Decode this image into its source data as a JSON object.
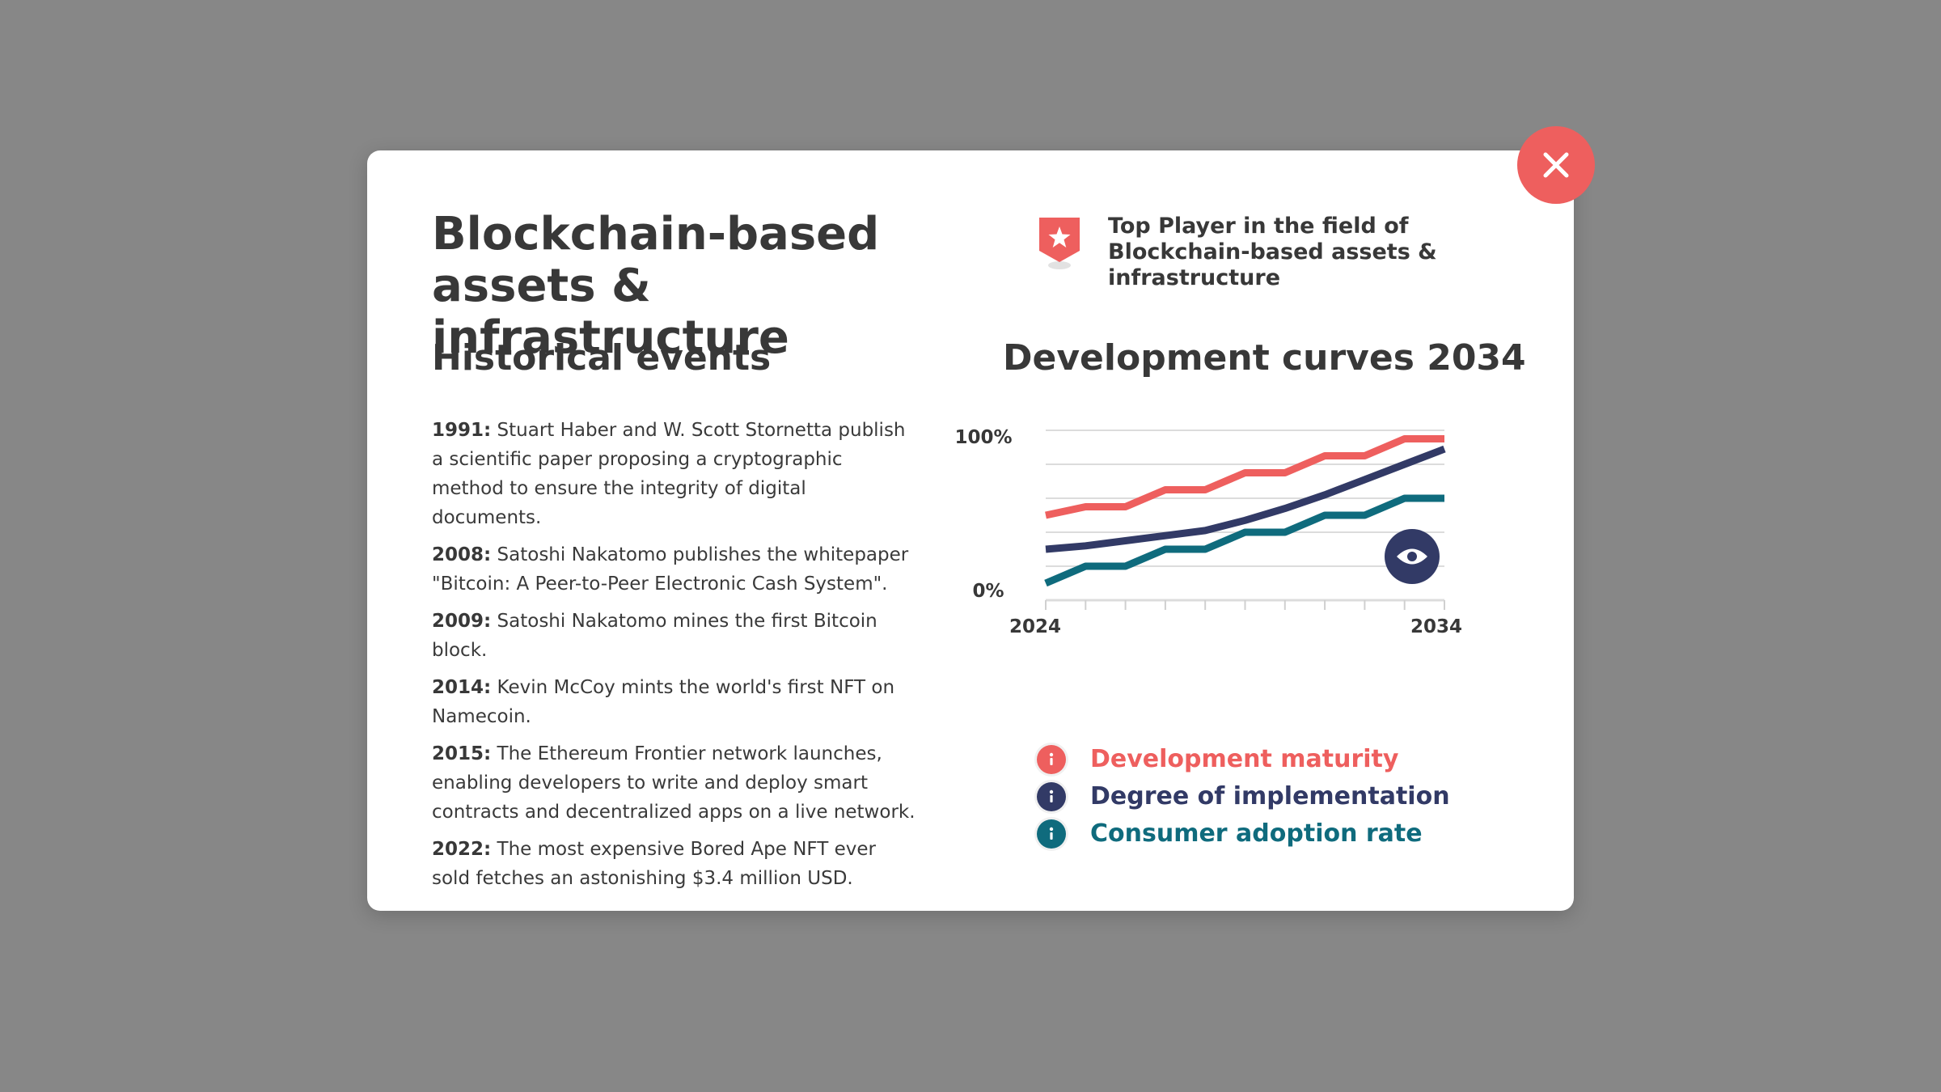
{
  "modal": {
    "title": "Blockchain-based assets & infrastructure",
    "badge_text": "Top Player in the field of Blockchain-based assets & infrastructure",
    "badge_icon": "star-badge-icon",
    "close_icon": "close-icon"
  },
  "historical": {
    "heading": "Historical events",
    "events": [
      {
        "year": "1991:",
        "text": "Stuart Haber and W. Scott Stornetta publish a scientific paper proposing a cryptographic method to ensure the integrity of digital documents."
      },
      {
        "year": "2008:",
        "text": "Satoshi Nakatomo publishes the whitepaper \"Bitcoin: A Peer-to-Peer Electronic Cash System\"."
      },
      {
        "year": "2009:",
        "text": "Satoshi Nakatomo mines the first Bitcoin block."
      },
      {
        "year": "2014:",
        "text": "Kevin McCoy mints the world's first NFT on Namecoin."
      },
      {
        "year": "2015:",
        "text": "The Ethereum Frontier network launches, enabling developers to write and deploy smart contracts and decentralized apps on a live network."
      },
      {
        "year": "2022:",
        "text": "The most expensive Bored Ape NFT ever sold fetches an astonishing $3.4 million USD."
      }
    ]
  },
  "chart_section": {
    "heading": "Development curves 2034",
    "view_icon": "eye-icon"
  },
  "colors": {
    "accent_red": "#ee5f5e",
    "navy": "#323a66",
    "teal": "#0f6b7d",
    "text": "#383838"
  },
  "chart_data": {
    "type": "line",
    "x": [
      2024,
      2025,
      2026,
      2027,
      2028,
      2029,
      2030,
      2031,
      2032,
      2033,
      2034
    ],
    "xtick_labels": [
      "2024",
      "2034"
    ],
    "ytick_labels": [
      "100%",
      "0%"
    ],
    "ylim": [
      0,
      100
    ],
    "grid": true,
    "series": [
      {
        "name": "Development maturity",
        "color": "#ee5f5e",
        "values": [
          50,
          55,
          55,
          65,
          65,
          75,
          75,
          85,
          85,
          95,
          95
        ]
      },
      {
        "name": "Degree of implementation",
        "color": "#323a66",
        "values": [
          30,
          32,
          35,
          38,
          41,
          47,
          54,
          62,
          71,
          80,
          89
        ]
      },
      {
        "name": "Consumer adoption rate",
        "color": "#0f6b7d",
        "values": [
          10,
          20,
          20,
          30,
          30,
          40,
          40,
          50,
          50,
          60,
          60
        ]
      }
    ]
  }
}
